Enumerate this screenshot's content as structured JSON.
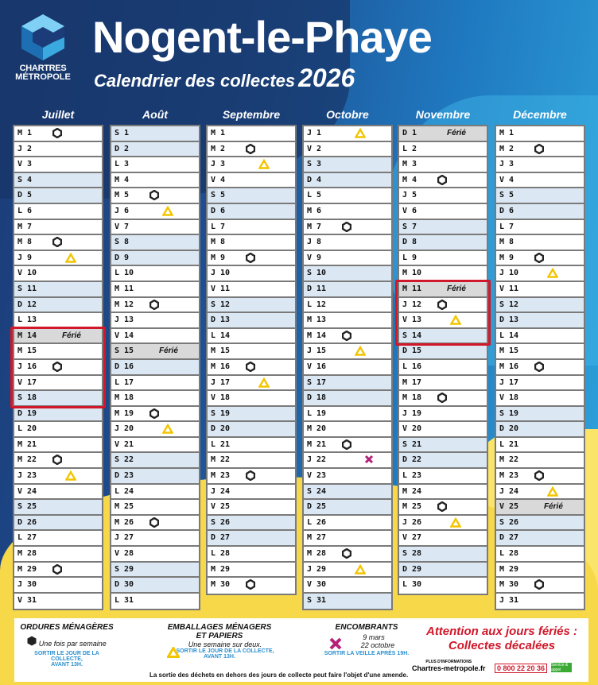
{
  "header": {
    "logo_line1": "CHARTRES",
    "logo_line2": "MÉTROPOLE",
    "title": "Nogent-le-Phaye",
    "subtitle": "Calendrier des collectes",
    "year": "2026"
  },
  "ferie_label": "Férié",
  "colors": {
    "hex": "#222222",
    "triangle": "#f2c500",
    "cross": "#b5207a",
    "highlight": "#d0182a",
    "weekend": "#dbe7f3"
  },
  "months": [
    {
      "name": "Juillet",
      "letters": "MJVSDLMMJVSDLMMJVSDLMMJVSDLMMJV",
      "hex": [
        1,
        8,
        16,
        22,
        29
      ],
      "tri": [
        9,
        23
      ],
      "cross": [],
      "ferie": [
        14
      ],
      "highlight": [
        14,
        18
      ]
    },
    {
      "name": "Août",
      "letters": "SDLMMJVSDLMMJVSDLMMJVSDLMMJVSDL",
      "hex": [
        5,
        12,
        19,
        26
      ],
      "tri": [
        6,
        20
      ],
      "cross": [],
      "ferie": [
        15
      ],
      "highlight": null
    },
    {
      "name": "Septembre",
      "letters": "MMJVSDLMMJVSDLMMJVSDLMMJVSDLMM",
      "hex": [
        2,
        9,
        16,
        23,
        30
      ],
      "tri": [
        3,
        17
      ],
      "cross": [],
      "ferie": [],
      "highlight": null
    },
    {
      "name": "Octobre",
      "letters": "JVSDLMMJVSDLMMJVSDLMMJVSDLMMJVS",
      "hex": [
        7,
        14,
        21,
        28
      ],
      "tri": [
        1,
        15,
        29
      ],
      "cross": [
        22
      ],
      "ferie": [],
      "highlight": null
    },
    {
      "name": "Novembre",
      "letters": "DLMMJVSDLMMJVSDLMMJVSDLMMJVSDL",
      "hex": [
        4,
        12,
        18,
        25
      ],
      "tri": [
        13,
        26
      ],
      "cross": [],
      "ferie": [
        1,
        11
      ],
      "highlight": [
        11,
        14
      ]
    },
    {
      "name": "Décembre",
      "letters": "MMJVSDLMMJVSDLMMJVSDLMMJVSDLMMJ",
      "hex": [
        2,
        9,
        16,
        23,
        30
      ],
      "tri": [
        10,
        24
      ],
      "cross": [],
      "ferie": [
        25
      ],
      "highlight": null
    }
  ],
  "legend": {
    "om": {
      "title": "ORDURES MÉNAGÈRES",
      "desc": "Une fois par semaine",
      "rule1": "Sortir le jour de la collecte,",
      "rule2": "avant 13h."
    },
    "emb": {
      "title1": "EMBALLAGES MÉNAGERS",
      "title2": "ET PAPIERS",
      "desc": "Une semaine sur deux.",
      "rule1": "Sortir le jour de la collecte,",
      "rule2": "avant 13h."
    },
    "enc": {
      "title": "ENCOMBRANTS",
      "date1": "9 mars",
      "date2": "22 octobre",
      "rule": "Sortir la veille après 19h."
    },
    "attention1": "Attention aux jours fériés :",
    "attention2": "Collectes décalées",
    "info_label": "PLUS D'INFORMATIONS",
    "website": "Chartres-metropole.fr",
    "phone": "0 800 22 20 36",
    "free_label": "Service & appel gratuits",
    "note": "La sortie des déchets en dehors des jours de collecte peut faire l'objet d'une amende."
  }
}
